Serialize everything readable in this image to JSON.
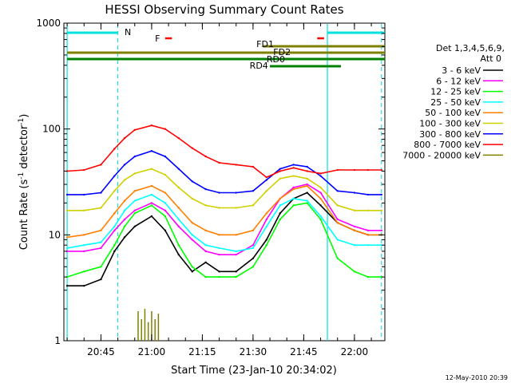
{
  "chart_data": {
    "type": "line",
    "title": "HESSI Observing Summary Count Rates",
    "xlabel": "Start Time (23-Jan-10 20:34:02)",
    "ylabel_base": "Count Rate (s",
    "ylabel_sup1": "-1",
    "ylabel_mid": " detector",
    "ylabel_sup2": "-1",
    "ylabel_end": ")",
    "y_scale": "log",
    "ylim": [
      1,
      1000
    ],
    "xlim": [
      "20:34:02",
      "22:09"
    ],
    "x_ticks": [
      "20:45",
      "21:00",
      "21:15",
      "21:30",
      "21:45",
      "22:00"
    ],
    "y_ticks": [
      "1",
      "10",
      "100",
      "1000"
    ],
    "legend_header": [
      "Det 1,3,4,5,6,9,",
      "Att 0"
    ],
    "legend_position": "right",
    "series": [
      {
        "name": "3 - 6 keV",
        "color": "#000000",
        "x": [
          "20:35",
          "20:40",
          "20:45",
          "20:49",
          "20:52",
          "20:55",
          "21:00",
          "21:04",
          "21:08",
          "21:12",
          "21:16",
          "21:20",
          "21:25",
          "21:30",
          "21:34",
          "21:38",
          "21:42",
          "21:46",
          "21:50",
          "21:55",
          "22:00",
          "22:04",
          "22:08"
        ],
        "values": [
          3.3,
          3.3,
          3.8,
          7,
          9.5,
          12,
          15,
          11,
          6.5,
          4.5,
          5.5,
          4.5,
          4.5,
          6,
          9,
          16,
          22,
          25,
          19,
          13,
          11,
          10,
          10
        ]
      },
      {
        "name": "6 - 12 keV",
        "color": "#ff00ff",
        "x": [
          "20:35",
          "20:40",
          "20:45",
          "20:49",
          "20:52",
          "20:55",
          "21:00",
          "21:04",
          "21:08",
          "21:12",
          "21:16",
          "21:20",
          "21:25",
          "21:30",
          "21:34",
          "21:38",
          "21:42",
          "21:46",
          "21:50",
          "21:55",
          "22:00",
          "22:04",
          "22:08"
        ],
        "values": [
          7,
          7,
          7.5,
          11,
          14,
          17,
          20,
          17,
          12,
          9,
          7,
          6.5,
          6.5,
          8,
          14,
          22,
          28,
          30,
          25,
          14,
          12,
          11,
          11
        ]
      },
      {
        "name": "12 - 25 keV",
        "color": "#00ff00",
        "x": [
          "20:35",
          "20:40",
          "20:45",
          "20:49",
          "20:52",
          "20:55",
          "21:00",
          "21:04",
          "21:08",
          "21:12",
          "21:16",
          "21:20",
          "21:25",
          "21:30",
          "21:34",
          "21:38",
          "21:42",
          "21:46",
          "21:50",
          "21:55",
          "22:00",
          "22:04",
          "22:08"
        ],
        "values": [
          4,
          4.5,
          5,
          8,
          12,
          16,
          19,
          15,
          8,
          5,
          4,
          4,
          4,
          5,
          8,
          14,
          19,
          20,
          14,
          6,
          4.5,
          4,
          4
        ]
      },
      {
        "name": "25 - 50 keV",
        "color": "#00ffff",
        "x": [
          "20:35",
          "20:40",
          "20:45",
          "20:49",
          "20:52",
          "20:55",
          "21:00",
          "21:04",
          "21:08",
          "21:12",
          "21:16",
          "21:20",
          "21:25",
          "21:30",
          "21:34",
          "21:38",
          "21:42",
          "21:46",
          "21:50",
          "21:55",
          "22:00",
          "22:04",
          "22:08"
        ],
        "values": [
          7.5,
          8,
          8.5,
          12,
          17,
          21,
          24,
          20,
          14,
          10,
          8,
          7.5,
          7,
          7.5,
          12,
          19,
          22,
          21,
          15,
          9,
          8,
          8,
          8
        ]
      },
      {
        "name": "50 - 100 keV",
        "color": "#ff8000",
        "x": [
          "20:35",
          "20:40",
          "20:45",
          "20:49",
          "20:52",
          "20:55",
          "21:00",
          "21:04",
          "21:08",
          "21:12",
          "21:16",
          "21:20",
          "21:25",
          "21:30",
          "21:34",
          "21:38",
          "21:42",
          "21:46",
          "21:50",
          "21:55",
          "22:00",
          "22:04",
          "22:08"
        ],
        "values": [
          9.5,
          10,
          11,
          16,
          21,
          26,
          29,
          25,
          18,
          13,
          11,
          10,
          10,
          11,
          16,
          22,
          27,
          29,
          22,
          13,
          11,
          10,
          10
        ]
      },
      {
        "name": "100 - 300 keV",
        "color": "#d0d000",
        "x": [
          "20:35",
          "20:40",
          "20:45",
          "20:49",
          "20:52",
          "20:55",
          "21:00",
          "21:04",
          "21:08",
          "21:12",
          "21:16",
          "21:20",
          "21:25",
          "21:30",
          "21:34",
          "21:38",
          "21:42",
          "21:46",
          "21:50",
          "21:55",
          "22:00",
          "22:04",
          "22:08"
        ],
        "values": [
          17,
          17,
          18,
          26,
          33,
          38,
          42,
          37,
          28,
          22,
          19,
          18,
          18,
          19,
          26,
          34,
          36,
          34,
          28,
          19,
          17,
          17,
          17
        ]
      },
      {
        "name": "300 - 800 keV",
        "color": "#0000ff",
        "x": [
          "20:35",
          "20:40",
          "20:45",
          "20:49",
          "20:52",
          "20:55",
          "21:00",
          "21:04",
          "21:08",
          "21:12",
          "21:16",
          "21:20",
          "21:25",
          "21:30",
          "21:34",
          "21:38",
          "21:42",
          "21:46",
          "21:50",
          "21:55",
          "22:00",
          "22:04",
          "22:08"
        ],
        "values": [
          24,
          24,
          25,
          36,
          46,
          55,
          62,
          55,
          42,
          32,
          27,
          25,
          25,
          26,
          33,
          42,
          46,
          44,
          36,
          26,
          25,
          24,
          24
        ]
      },
      {
        "name": "800 - 7000 keV",
        "color": "#ff0000",
        "x": [
          "20:35",
          "20:40",
          "20:45",
          "20:49",
          "20:52",
          "20:55",
          "21:00",
          "21:04",
          "21:08",
          "21:12",
          "21:16",
          "21:20",
          "21:25",
          "21:30",
          "21:34",
          "21:38",
          "21:42",
          "21:46",
          "21:50",
          "21:55",
          "22:00",
          "22:04",
          "22:08"
        ],
        "values": [
          40,
          41,
          46,
          65,
          82,
          98,
          108,
          100,
          82,
          66,
          55,
          48,
          46,
          44,
          35,
          40,
          43,
          40,
          38,
          41,
          41,
          41,
          41
        ]
      },
      {
        "name": "7000 - 20000 keV",
        "color": "#808000",
        "x": [
          "20:56",
          "20:57",
          "20:58",
          "20:59",
          "21:00",
          "21:01",
          "21:02"
        ],
        "values": [
          1.9,
          1.6,
          2.0,
          1.5,
          1.9,
          1.6,
          1.8
        ]
      }
    ],
    "annotations": [
      {
        "label": "N",
        "color": "#00e0e0"
      },
      {
        "label": "F",
        "color": "#ff0000"
      },
      {
        "label": "FD1",
        "color": "#808000"
      },
      {
        "label": "FD2",
        "color": "#808000"
      },
      {
        "label": "RD0",
        "color": "#008000"
      },
      {
        "label": "RD4",
        "color": "#008000"
      }
    ]
  },
  "timestamp": "12-May-2010 20:39"
}
